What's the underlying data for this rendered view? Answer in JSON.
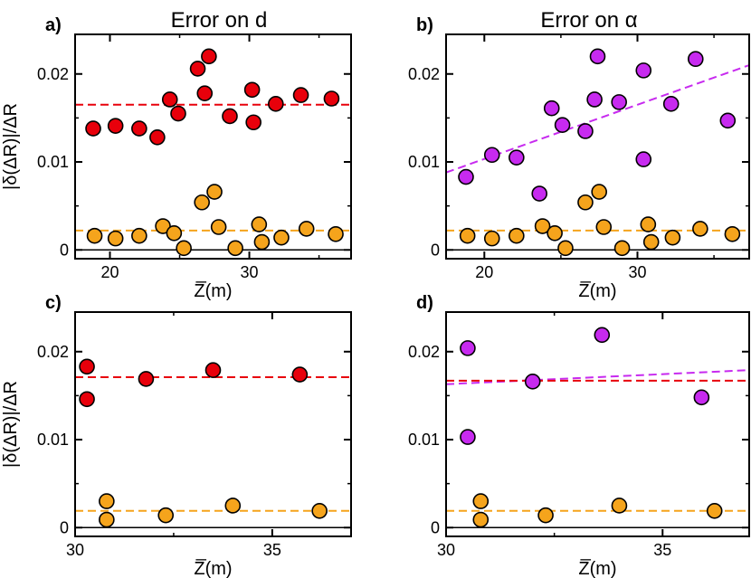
{
  "figure": {
    "column_titles": [
      "Error on d",
      "Error on α"
    ]
  },
  "colors": {
    "red": "#e8000b",
    "orange": "#f5a41c",
    "purple": "#c72aef",
    "red_line": "#e8000b",
    "orange_line": "#f5a41c",
    "purple_line": "#c72aef",
    "zero_line": "#000000"
  },
  "chart_data": [
    {
      "panel": "a)",
      "type": "scatter",
      "title": "Error on d",
      "xlabel": "Z̅(m)",
      "ylabel": "|δ(ΔR)|/ΔR",
      "xlim": [
        17.5,
        37.3
      ],
      "ylim": [
        -0.001,
        0.0245
      ],
      "xticks": [
        20,
        30
      ],
      "xtick_labels": [
        "20",
        "30"
      ],
      "yticks": [
        0,
        0.01,
        0.02
      ],
      "ytick_labels": [
        "0",
        "0.01",
        "0.02"
      ],
      "series": [
        {
          "name": "upper",
          "color": "red",
          "x": [
            18.8,
            20.4,
            22.1,
            23.4,
            24.3,
            24.9,
            26.3,
            26.8,
            27.1,
            28.6,
            30.2,
            30.3,
            31.9,
            33.7,
            35.9
          ],
          "y": [
            0.0138,
            0.0141,
            0.0138,
            0.0128,
            0.0171,
            0.0155,
            0.0206,
            0.0178,
            0.022,
            0.0152,
            0.0182,
            0.0145,
            0.0166,
            0.0176,
            0.0172
          ]
        },
        {
          "name": "lower",
          "color": "orange",
          "x": [
            18.9,
            20.4,
            22.1,
            23.8,
            24.6,
            25.3,
            26.6,
            27.5,
            27.8,
            29.0,
            30.7,
            30.9,
            32.3,
            34.1,
            36.2
          ],
          "y": [
            0.0016,
            0.0013,
            0.0016,
            0.0027,
            0.0019,
            0.0002,
            0.0054,
            0.0066,
            0.0026,
            0.0002,
            0.0029,
            0.0009,
            0.0014,
            0.0024,
            0.0018
          ]
        }
      ],
      "reference_lines": [
        {
          "name": "upper-mean",
          "color": "red_line",
          "x": [
            17.5,
            37.3
          ],
          "y": [
            0.0165,
            0.0165
          ]
        },
        {
          "name": "lower-mean",
          "color": "orange_line",
          "x": [
            17.5,
            37.3
          ],
          "y": [
            0.0022,
            0.0022
          ]
        }
      ]
    },
    {
      "panel": "b)",
      "type": "scatter",
      "title": "Error on α",
      "xlabel": "Z̅(m)",
      "ylabel": "",
      "xlim": [
        17.5,
        37.3
      ],
      "ylim": [
        -0.001,
        0.0245
      ],
      "xticks": [
        20,
        30
      ],
      "xtick_labels": [
        "20",
        "30"
      ],
      "yticks": [
        0,
        0.01,
        0.02
      ],
      "ytick_labels": [
        "0",
        "0.01",
        "0.02"
      ],
      "series": [
        {
          "name": "upper",
          "color": "purple",
          "x": [
            18.8,
            20.5,
            22.1,
            23.6,
            24.4,
            25.1,
            26.6,
            27.2,
            27.4,
            28.8,
            30.4,
            30.4,
            32.2,
            33.8,
            35.9
          ],
          "y": [
            0.0083,
            0.0108,
            0.0105,
            0.0064,
            0.0161,
            0.0142,
            0.0135,
            0.0171,
            0.022,
            0.0168,
            0.0204,
            0.0103,
            0.0166,
            0.0217,
            0.0147
          ]
        },
        {
          "name": "lower",
          "color": "orange",
          "x": [
            18.9,
            20.5,
            22.1,
            23.8,
            24.6,
            25.3,
            26.6,
            27.5,
            27.8,
            29.0,
            30.7,
            30.9,
            32.3,
            34.1,
            36.2
          ],
          "y": [
            0.0016,
            0.0013,
            0.0016,
            0.0027,
            0.0019,
            0.0002,
            0.0054,
            0.0066,
            0.0026,
            0.0002,
            0.0029,
            0.0009,
            0.0014,
            0.0024,
            0.0018
          ]
        }
      ],
      "reference_lines": [
        {
          "name": "upper-fit",
          "color": "purple_line",
          "x": [
            17.5,
            37.3
          ],
          "y": [
            0.0088,
            0.021
          ]
        },
        {
          "name": "lower-mean",
          "color": "orange_line",
          "x": [
            17.5,
            37.3
          ],
          "y": [
            0.0022,
            0.0022
          ]
        }
      ]
    },
    {
      "panel": "c)",
      "type": "scatter",
      "title": "",
      "xlabel": "Z̅(m)",
      "ylabel": "|δ(ΔR)|/ΔR",
      "xlim": [
        30.0,
        37.0
      ],
      "ylim": [
        -0.001,
        0.0245
      ],
      "xticks": [
        30,
        35
      ],
      "xtick_labels": [
        "30",
        "35"
      ],
      "yticks": [
        0,
        0.01,
        0.02
      ],
      "ytick_labels": [
        "0",
        "0.01",
        "0.02"
      ],
      "series": [
        {
          "name": "upper",
          "color": "red",
          "x": [
            30.3,
            30.3,
            31.8,
            33.5,
            35.7
          ],
          "y": [
            0.0183,
            0.0146,
            0.0169,
            0.0179,
            0.0174
          ]
        },
        {
          "name": "lower",
          "color": "orange",
          "x": [
            30.8,
            30.8,
            32.3,
            34.0,
            36.2
          ],
          "y": [
            0.003,
            0.0009,
            0.0014,
            0.0025,
            0.0019
          ]
        }
      ],
      "reference_lines": [
        {
          "name": "upper-mean",
          "color": "red_line",
          "x": [
            30.0,
            37.0
          ],
          "y": [
            0.0171,
            0.0171
          ]
        },
        {
          "name": "lower-mean",
          "color": "orange_line",
          "x": [
            30.0,
            37.0
          ],
          "y": [
            0.0019,
            0.0019
          ]
        }
      ]
    },
    {
      "panel": "d)",
      "type": "scatter",
      "title": "",
      "xlabel": "Z̅(m)",
      "ylabel": "",
      "xlim": [
        30.0,
        37.0
      ],
      "ylim": [
        -0.001,
        0.0245
      ],
      "xticks": [
        30,
        35
      ],
      "xtick_labels": [
        "30",
        "35"
      ],
      "yticks": [
        0,
        0.01,
        0.02
      ],
      "ytick_labels": [
        "0",
        "0.01",
        "0.02"
      ],
      "series": [
        {
          "name": "upper",
          "color": "purple",
          "x": [
            30.5,
            30.5,
            32.0,
            33.6,
            35.9
          ],
          "y": [
            0.0204,
            0.0103,
            0.0166,
            0.0219,
            0.0148
          ]
        },
        {
          "name": "lower",
          "color": "orange",
          "x": [
            30.8,
            30.8,
            32.3,
            34.0,
            36.2
          ],
          "y": [
            0.003,
            0.0009,
            0.0014,
            0.0025,
            0.0019
          ]
        }
      ],
      "reference_lines": [
        {
          "name": "upper-fit",
          "color": "purple_line",
          "x": [
            30.0,
            37.0
          ],
          "y": [
            0.0163,
            0.0179
          ]
        },
        {
          "name": "upper-mean",
          "color": "red_line",
          "x": [
            30.0,
            37.0
          ],
          "y": [
            0.0167,
            0.0167
          ]
        },
        {
          "name": "lower-mean",
          "color": "orange_line",
          "x": [
            30.0,
            37.0
          ],
          "y": [
            0.0019,
            0.0019
          ]
        }
      ]
    }
  ]
}
